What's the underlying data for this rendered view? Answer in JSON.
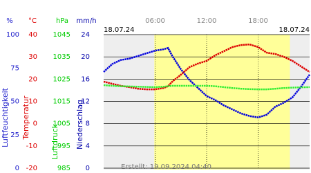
{
  "chart_data": {
    "type": "line",
    "date_start": "18.07.24",
    "date_end": "18.07.24",
    "created": "Erstellt: 19.09.2024 04:40",
    "xlim": [
      0,
      24
    ],
    "xticks": [
      {
        "value": 6,
        "label": "06:00"
      },
      {
        "value": 12,
        "label": "12:00"
      },
      {
        "value": 18,
        "label": "18:00"
      }
    ],
    "daylight": [
      5.9,
      21.7
    ],
    "grid": true,
    "axes": [
      {
        "unit": "%",
        "title": "Luftfeuchtigkeit",
        "color": "#2222cc",
        "lim": [
          0,
          100
        ],
        "ticks": [
          0,
          25,
          50,
          75,
          100
        ]
      },
      {
        "unit": "°C",
        "title": "Temperatur",
        "color": "#dd0000",
        "lim": [
          -20,
          40
        ],
        "ticks": [
          -20,
          -10,
          0,
          10,
          20,
          30,
          40
        ]
      },
      {
        "unit": "hPa",
        "title": "Luftdruck",
        "color": "#00cc00",
        "lim": [
          985,
          1045
        ],
        "ticks": [
          985,
          995,
          1005,
          1015,
          1025,
          1035,
          1045
        ]
      },
      {
        "unit": "mm/h",
        "title": "Niederschlag",
        "color": "#0000aa",
        "lim": [
          0,
          24
        ],
        "ticks": [
          0,
          4,
          8,
          12,
          16,
          20,
          24
        ]
      }
    ],
    "x": [
      0,
      1,
      2,
      3,
      4,
      5,
      6,
      7,
      7.5,
      8,
      9,
      10,
      11,
      12,
      13,
      14,
      15,
      16,
      17,
      18,
      19,
      20,
      21,
      22,
      23,
      24
    ],
    "series": [
      {
        "name": "Luftfeuchtigkeit",
        "axis": 0,
        "color": "#0000dd",
        "values": [
          72,
          78,
          81,
          82,
          84,
          86,
          88,
          89,
          90,
          84,
          74,
          66,
          60,
          54,
          51,
          47,
          44,
          41,
          39,
          38,
          40,
          46,
          49,
          53,
          61,
          70
        ]
      },
      {
        "name": "Temperatur",
        "axis": 1,
        "color": "#dd0000",
        "values": [
          18.9,
          17.9,
          17.0,
          16.4,
          15.7,
          15.4,
          15.4,
          16.0,
          16.8,
          18.9,
          22.0,
          25.4,
          27.0,
          28.2,
          30.7,
          32.5,
          34.4,
          35.3,
          35.6,
          34.4,
          31.9,
          31.3,
          30.0,
          28.2,
          25.7,
          23.2
        ]
      },
      {
        "name": "Luftdruck",
        "axis": 2,
        "color": "#33ee33",
        "values": [
          1022.3,
          1022.0,
          1021.8,
          1021.7,
          1021.6,
          1021.5,
          1021.4,
          1021.6,
          1021.8,
          1022.0,
          1022.0,
          1022.0,
          1022.0,
          1022.0,
          1021.8,
          1021.4,
          1021.0,
          1020.7,
          1020.5,
          1020.4,
          1020.4,
          1020.7,
          1021.0,
          1021.2,
          1021.3,
          1021.4
        ]
      }
    ]
  }
}
